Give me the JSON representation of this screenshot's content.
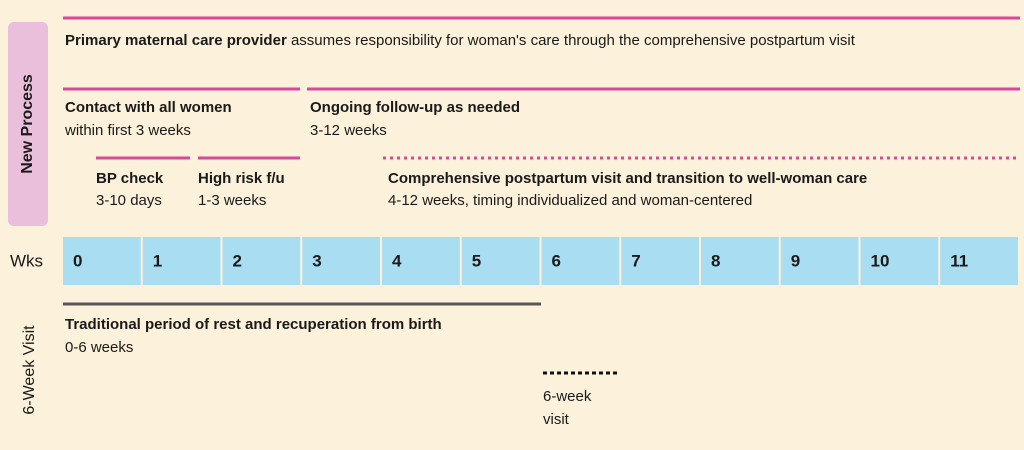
{
  "new_process": {
    "label": "New Process",
    "primary": {
      "title": "Primary maternal care provider",
      "text": "assumes responsibility for woman's care through the comprehensive postpartum visit"
    },
    "contact": {
      "title": "Contact with all women",
      "text": "within first 3 weeks"
    },
    "ongoing": {
      "title": "Ongoing follow-up as needed",
      "text": "3-12 weeks"
    },
    "bp_check": {
      "title": "BP check",
      "text": "3-10 days"
    },
    "high_risk": {
      "title": "High risk f/u",
      "text": "1-3 weeks"
    },
    "comprehensive": {
      "title": "Comprehensive postpartum visit and transition to well-woman care",
      "text": "4-12 weeks, timing individualized and woman-centered"
    }
  },
  "weeks": {
    "label": "Wks",
    "items": [
      "0",
      "1",
      "2",
      "3",
      "4",
      "5",
      "6",
      "7",
      "8",
      "9",
      "10",
      "11"
    ]
  },
  "six_week": {
    "label": "6-Week Visit",
    "traditional": {
      "title": "Traditional period of rest and recuperation from birth",
      "text": "0-6 weeks"
    },
    "visit": {
      "line1": "6-week",
      "line2": "visit"
    }
  }
}
